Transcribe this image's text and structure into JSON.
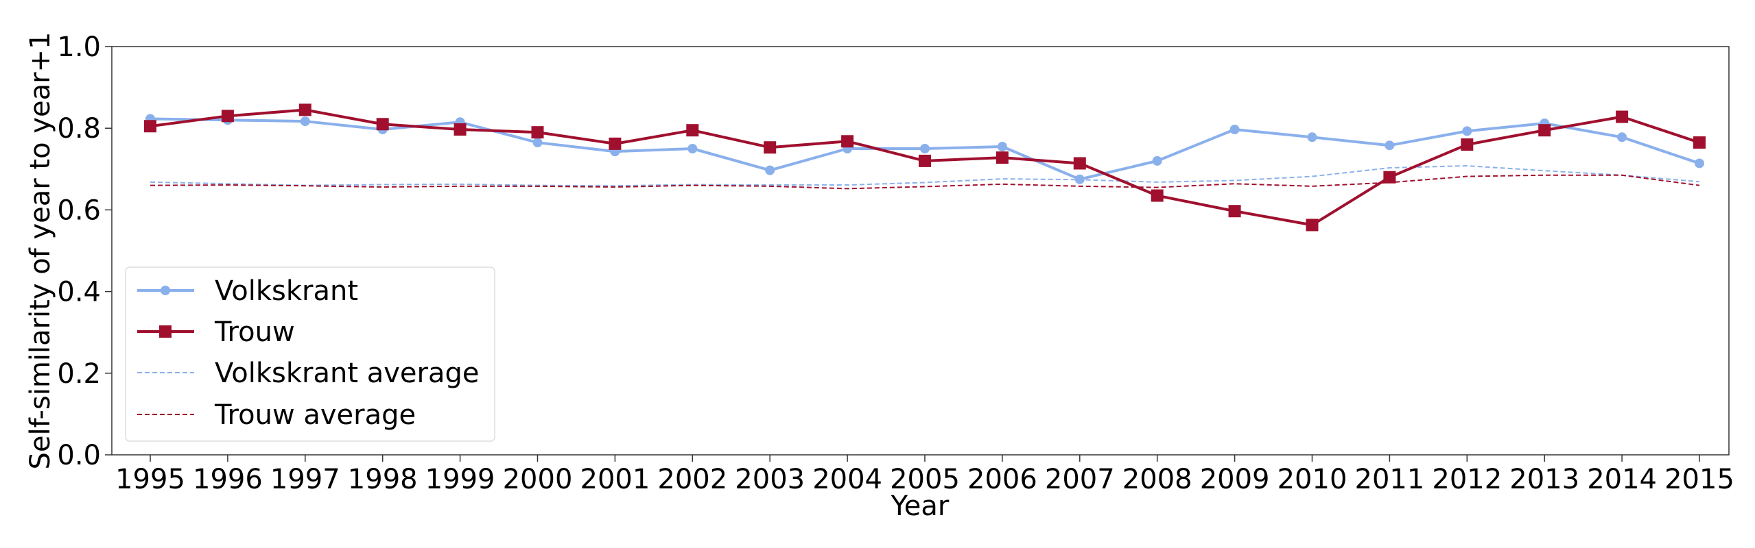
{
  "chart_data": {
    "type": "line",
    "title": "",
    "xlabel": "Year",
    "ylabel": "Self-similarity of year to year+1",
    "ylim": [
      0,
      1.0
    ],
    "yticks": [
      "0.0",
      "0.2",
      "0.4",
      "0.6",
      "0.8",
      "1.0"
    ],
    "x": [
      "1995",
      "1996",
      "1997",
      "1998",
      "1999",
      "2000",
      "2001",
      "2002",
      "2003",
      "2004",
      "2005",
      "2006",
      "2007",
      "2008",
      "2009",
      "2010",
      "2011",
      "2012",
      "2013",
      "2014",
      "2015"
    ],
    "grid": false,
    "legend_position": "lower-left",
    "series": [
      {
        "name": "Volkskrant",
        "style": "solid",
        "marker": "circle",
        "color": "#8ab0ec",
        "values": [
          0.823,
          0.82,
          0.817,
          0.797,
          0.815,
          0.765,
          0.743,
          0.75,
          0.697,
          0.75,
          0.75,
          0.755,
          0.675,
          0.72,
          0.797,
          0.778,
          0.758,
          0.793,
          0.812,
          0.778,
          0.714
        ]
      },
      {
        "name": "Trouw",
        "style": "solid",
        "marker": "square",
        "color": "#a0102e",
        "values": [
          0.805,
          0.83,
          0.845,
          0.81,
          0.797,
          0.79,
          0.762,
          0.795,
          0.753,
          0.768,
          0.72,
          0.728,
          0.714,
          0.635,
          0.597,
          0.563,
          0.68,
          0.76,
          0.795,
          0.828,
          0.765
        ]
      },
      {
        "name": "Volkskrant average",
        "style": "dashed",
        "marker": "none",
        "color": "#8ab0ec",
        "values": [
          0.668,
          0.664,
          0.66,
          0.662,
          0.663,
          0.66,
          0.659,
          0.662,
          0.661,
          0.661,
          0.667,
          0.676,
          0.674,
          0.668,
          0.672,
          0.682,
          0.703,
          0.708,
          0.696,
          0.685,
          0.669
        ]
      },
      {
        "name": "Trouw average",
        "style": "dashed",
        "marker": "none",
        "color": "#a0102e",
        "values": [
          0.66,
          0.661,
          0.659,
          0.656,
          0.658,
          0.658,
          0.656,
          0.66,
          0.658,
          0.652,
          0.657,
          0.663,
          0.658,
          0.655,
          0.664,
          0.658,
          0.667,
          0.682,
          0.685,
          0.685,
          0.66
        ]
      }
    ]
  }
}
